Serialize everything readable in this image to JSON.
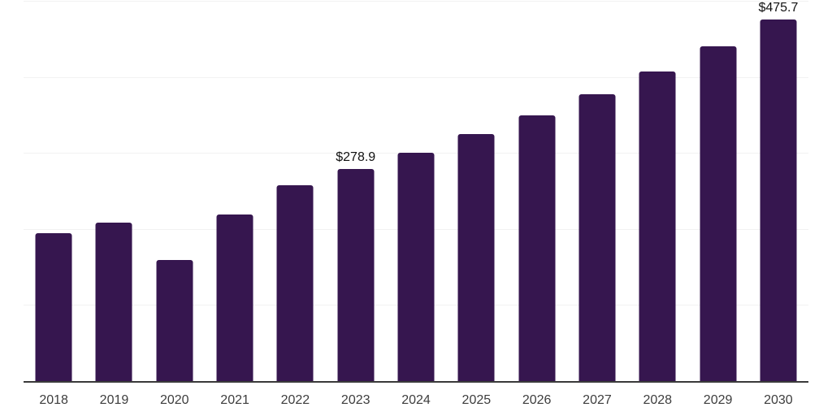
{
  "chart_data": {
    "type": "bar",
    "title": "",
    "xlabel": "",
    "ylabel": "",
    "categories": [
      "2018",
      "2019",
      "2020",
      "2021",
      "2022",
      "2023",
      "2024",
      "2025",
      "2026",
      "2027",
      "2028",
      "2029",
      "2030"
    ],
    "values": [
      194.0,
      208.5,
      159.5,
      219.0,
      257.0,
      278.9,
      300.0,
      324.5,
      349.5,
      377.5,
      407.0,
      440.0,
      475.7
    ],
    "data_labels": {
      "2023": "$278.9",
      "2030": "$475.7"
    },
    "ylim": [
      0,
      500
    ],
    "gridline_step": 100,
    "grid": "horizontal-only",
    "legend_position": "none",
    "colors": {
      "bar": "#36164F",
      "axis_line": "#3a3a3a",
      "gridline": "#f2f2f2",
      "tick_label": "#3d3d3d",
      "data_label": "#111111",
      "background": "#ffffff"
    }
  }
}
